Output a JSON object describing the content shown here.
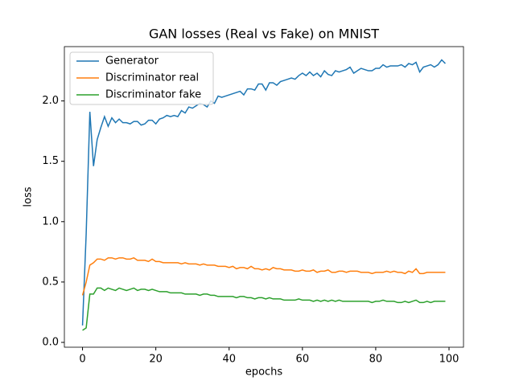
{
  "chart_data": {
    "type": "line",
    "title": "GAN losses (Real vs Fake) on MNIST",
    "x_label": "epochs",
    "y_label": "loss",
    "x": [
      0,
      1,
      2,
      3,
      4,
      5,
      6,
      7,
      8,
      9,
      10,
      11,
      12,
      13,
      14,
      15,
      16,
      17,
      18,
      19,
      20,
      21,
      22,
      23,
      24,
      25,
      26,
      27,
      28,
      29,
      30,
      31,
      32,
      33,
      34,
      35,
      36,
      37,
      38,
      39,
      40,
      41,
      42,
      43,
      44,
      45,
      46,
      47,
      48,
      49,
      50,
      51,
      52,
      53,
      54,
      55,
      56,
      57,
      58,
      59,
      60,
      61,
      62,
      63,
      64,
      65,
      66,
      67,
      68,
      69,
      70,
      71,
      72,
      73,
      74,
      75,
      76,
      77,
      78,
      79,
      80,
      81,
      82,
      83,
      84,
      85,
      86,
      87,
      88,
      89,
      90,
      91,
      92,
      93,
      94,
      95,
      96,
      97,
      98,
      99
    ],
    "series": [
      {
        "name": "Generator",
        "color": "#1f77b4",
        "values": [
          0.14,
          0.9,
          1.91,
          1.46,
          1.68,
          1.78,
          1.87,
          1.79,
          1.86,
          1.82,
          1.85,
          1.82,
          1.82,
          1.81,
          1.83,
          1.83,
          1.8,
          1.81,
          1.84,
          1.84,
          1.81,
          1.85,
          1.86,
          1.88,
          1.87,
          1.88,
          1.87,
          1.92,
          1.9,
          1.95,
          1.94,
          1.96,
          1.98,
          1.97,
          1.95,
          2.0,
          1.98,
          2.04,
          2.03,
          2.04,
          2.05,
          2.06,
          2.07,
          2.08,
          2.05,
          2.1,
          2.1,
          2.09,
          2.14,
          2.14,
          2.09,
          2.15,
          2.15,
          2.13,
          2.16,
          2.17,
          2.18,
          2.19,
          2.18,
          2.21,
          2.23,
          2.21,
          2.24,
          2.21,
          2.23,
          2.2,
          2.25,
          2.22,
          2.21,
          2.25,
          2.24,
          2.25,
          2.26,
          2.28,
          2.23,
          2.25,
          2.27,
          2.26,
          2.25,
          2.25,
          2.27,
          2.27,
          2.3,
          2.28,
          2.29,
          2.29,
          2.29,
          2.3,
          2.28,
          2.31,
          2.3,
          2.32,
          2.24,
          2.28,
          2.29,
          2.3,
          2.28,
          2.3,
          2.34,
          2.31
        ]
      },
      {
        "name": "Discriminator real",
        "color": "#ff7f0e",
        "values": [
          0.39,
          0.5,
          0.64,
          0.66,
          0.69,
          0.69,
          0.68,
          0.7,
          0.7,
          0.69,
          0.7,
          0.7,
          0.69,
          0.69,
          0.7,
          0.68,
          0.68,
          0.68,
          0.67,
          0.69,
          0.67,
          0.67,
          0.66,
          0.66,
          0.66,
          0.66,
          0.66,
          0.65,
          0.66,
          0.65,
          0.65,
          0.65,
          0.64,
          0.65,
          0.64,
          0.64,
          0.64,
          0.63,
          0.63,
          0.63,
          0.62,
          0.63,
          0.61,
          0.62,
          0.62,
          0.61,
          0.63,
          0.61,
          0.61,
          0.6,
          0.61,
          0.6,
          0.62,
          0.61,
          0.61,
          0.6,
          0.6,
          0.6,
          0.59,
          0.59,
          0.6,
          0.59,
          0.59,
          0.6,
          0.58,
          0.59,
          0.59,
          0.6,
          0.58,
          0.58,
          0.59,
          0.59,
          0.58,
          0.59,
          0.59,
          0.59,
          0.58,
          0.58,
          0.58,
          0.57,
          0.58,
          0.58,
          0.58,
          0.59,
          0.58,
          0.59,
          0.58,
          0.58,
          0.57,
          0.59,
          0.58,
          0.61,
          0.57,
          0.57,
          0.58,
          0.58,
          0.58,
          0.58,
          0.58,
          0.58
        ]
      },
      {
        "name": "Discriminator fake",
        "color": "#2ca02c",
        "values": [
          0.1,
          0.12,
          0.4,
          0.4,
          0.45,
          0.45,
          0.43,
          0.45,
          0.44,
          0.43,
          0.45,
          0.44,
          0.43,
          0.44,
          0.45,
          0.43,
          0.44,
          0.44,
          0.43,
          0.44,
          0.43,
          0.42,
          0.42,
          0.42,
          0.41,
          0.41,
          0.41,
          0.41,
          0.4,
          0.4,
          0.4,
          0.4,
          0.39,
          0.4,
          0.4,
          0.39,
          0.39,
          0.38,
          0.38,
          0.38,
          0.38,
          0.38,
          0.37,
          0.38,
          0.38,
          0.37,
          0.37,
          0.36,
          0.37,
          0.37,
          0.36,
          0.37,
          0.36,
          0.36,
          0.36,
          0.35,
          0.35,
          0.35,
          0.35,
          0.36,
          0.35,
          0.35,
          0.35,
          0.34,
          0.35,
          0.34,
          0.35,
          0.34,
          0.35,
          0.34,
          0.35,
          0.34,
          0.34,
          0.34,
          0.34,
          0.34,
          0.34,
          0.34,
          0.34,
          0.33,
          0.34,
          0.34,
          0.35,
          0.34,
          0.34,
          0.34,
          0.33,
          0.33,
          0.34,
          0.33,
          0.34,
          0.35,
          0.33,
          0.33,
          0.34,
          0.33,
          0.34,
          0.34,
          0.34,
          0.34
        ]
      }
    ],
    "xlim": [
      -4.95,
      103.95
    ],
    "ylim": [
      -0.04,
      2.45
    ],
    "xticks": [
      0,
      20,
      40,
      60,
      80,
      100
    ],
    "yticks": [
      {
        "value": 0,
        "label": "0.0"
      },
      0.5,
      {
        "value": 1,
        "label": "1.0"
      },
      1.5,
      {
        "value": 2,
        "label": "2.0"
      }
    ],
    "grid": false,
    "legend": "upper left"
  }
}
